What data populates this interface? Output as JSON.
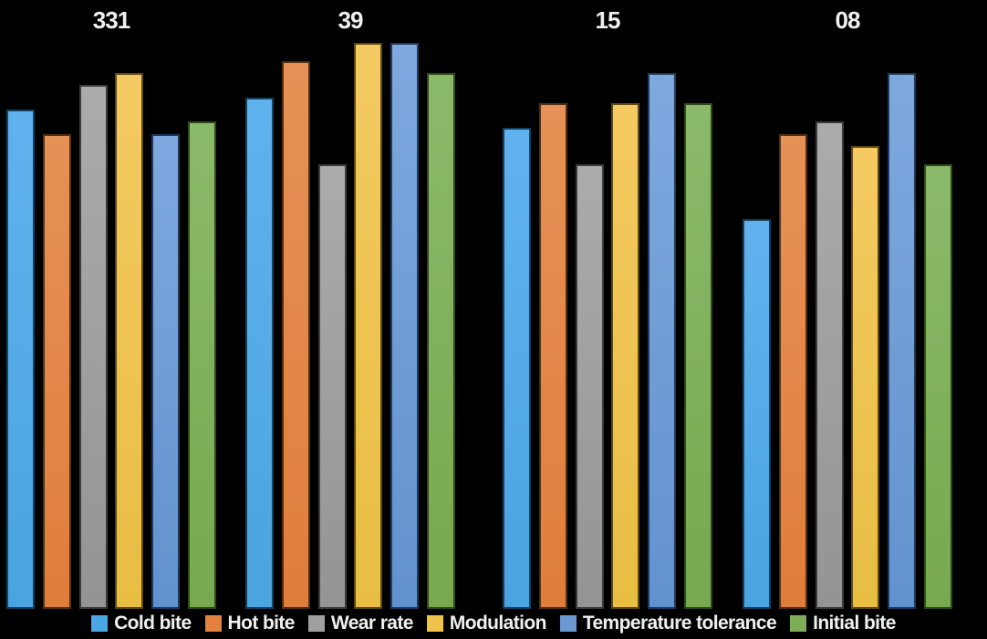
{
  "chart": {
    "background": "#000000",
    "text_color": "#EFEFEF"
  },
  "chart_data": {
    "type": "bar",
    "title": "",
    "categories": [
      "331",
      "39",
      "15",
      "08"
    ],
    "category_label_position": "top",
    "legend_position": "bottom",
    "grid": false,
    "axes_visible": false,
    "ylim": [
      0,
      10
    ],
    "series": [
      {
        "name": "Cold bite",
        "values": [
          8.2,
          8.4,
          7.9,
          6.4
        ],
        "color": "#49A7E8",
        "color_top": "#60B2EE",
        "color_bottom": "#49A4E0",
        "border_color": "#17405F"
      },
      {
        "name": "Hot bite",
        "values": [
          7.8,
          9.0,
          8.3,
          7.8
        ],
        "color": "#E2823E",
        "color_top": "#E69158",
        "color_bottom": "#DF7E3B",
        "border_color": "#53300F"
      },
      {
        "name": "Wear rate",
        "values": [
          8.6,
          7.3,
          7.3,
          8.0
        ],
        "color": "#A0A0A0",
        "color_top": "#ABABAB",
        "color_bottom": "#949494",
        "border_color": "#3C3C3C"
      },
      {
        "name": "Modulation",
        "values": [
          8.8,
          9.3,
          8.3,
          7.6
        ],
        "color": "#EFC24A",
        "color_top": "#F5CA62",
        "color_bottom": "#E8BD42",
        "border_color": "#5F4A0E"
      },
      {
        "name": "Temperature tolerance",
        "values": [
          7.8,
          9.3,
          8.8,
          8.8
        ],
        "color": "#6B98D3",
        "color_top": "#7FA8DE",
        "color_bottom": "#6292CE",
        "border_color": "#1E3A5F"
      },
      {
        "name": "Initial bite",
        "values": [
          8.0,
          8.8,
          8.3,
          7.3
        ],
        "color": "#7EAD57",
        "color_top": "#8BB96A",
        "color_bottom": "#78A850",
        "border_color": "#2F4A1A"
      }
    ]
  }
}
